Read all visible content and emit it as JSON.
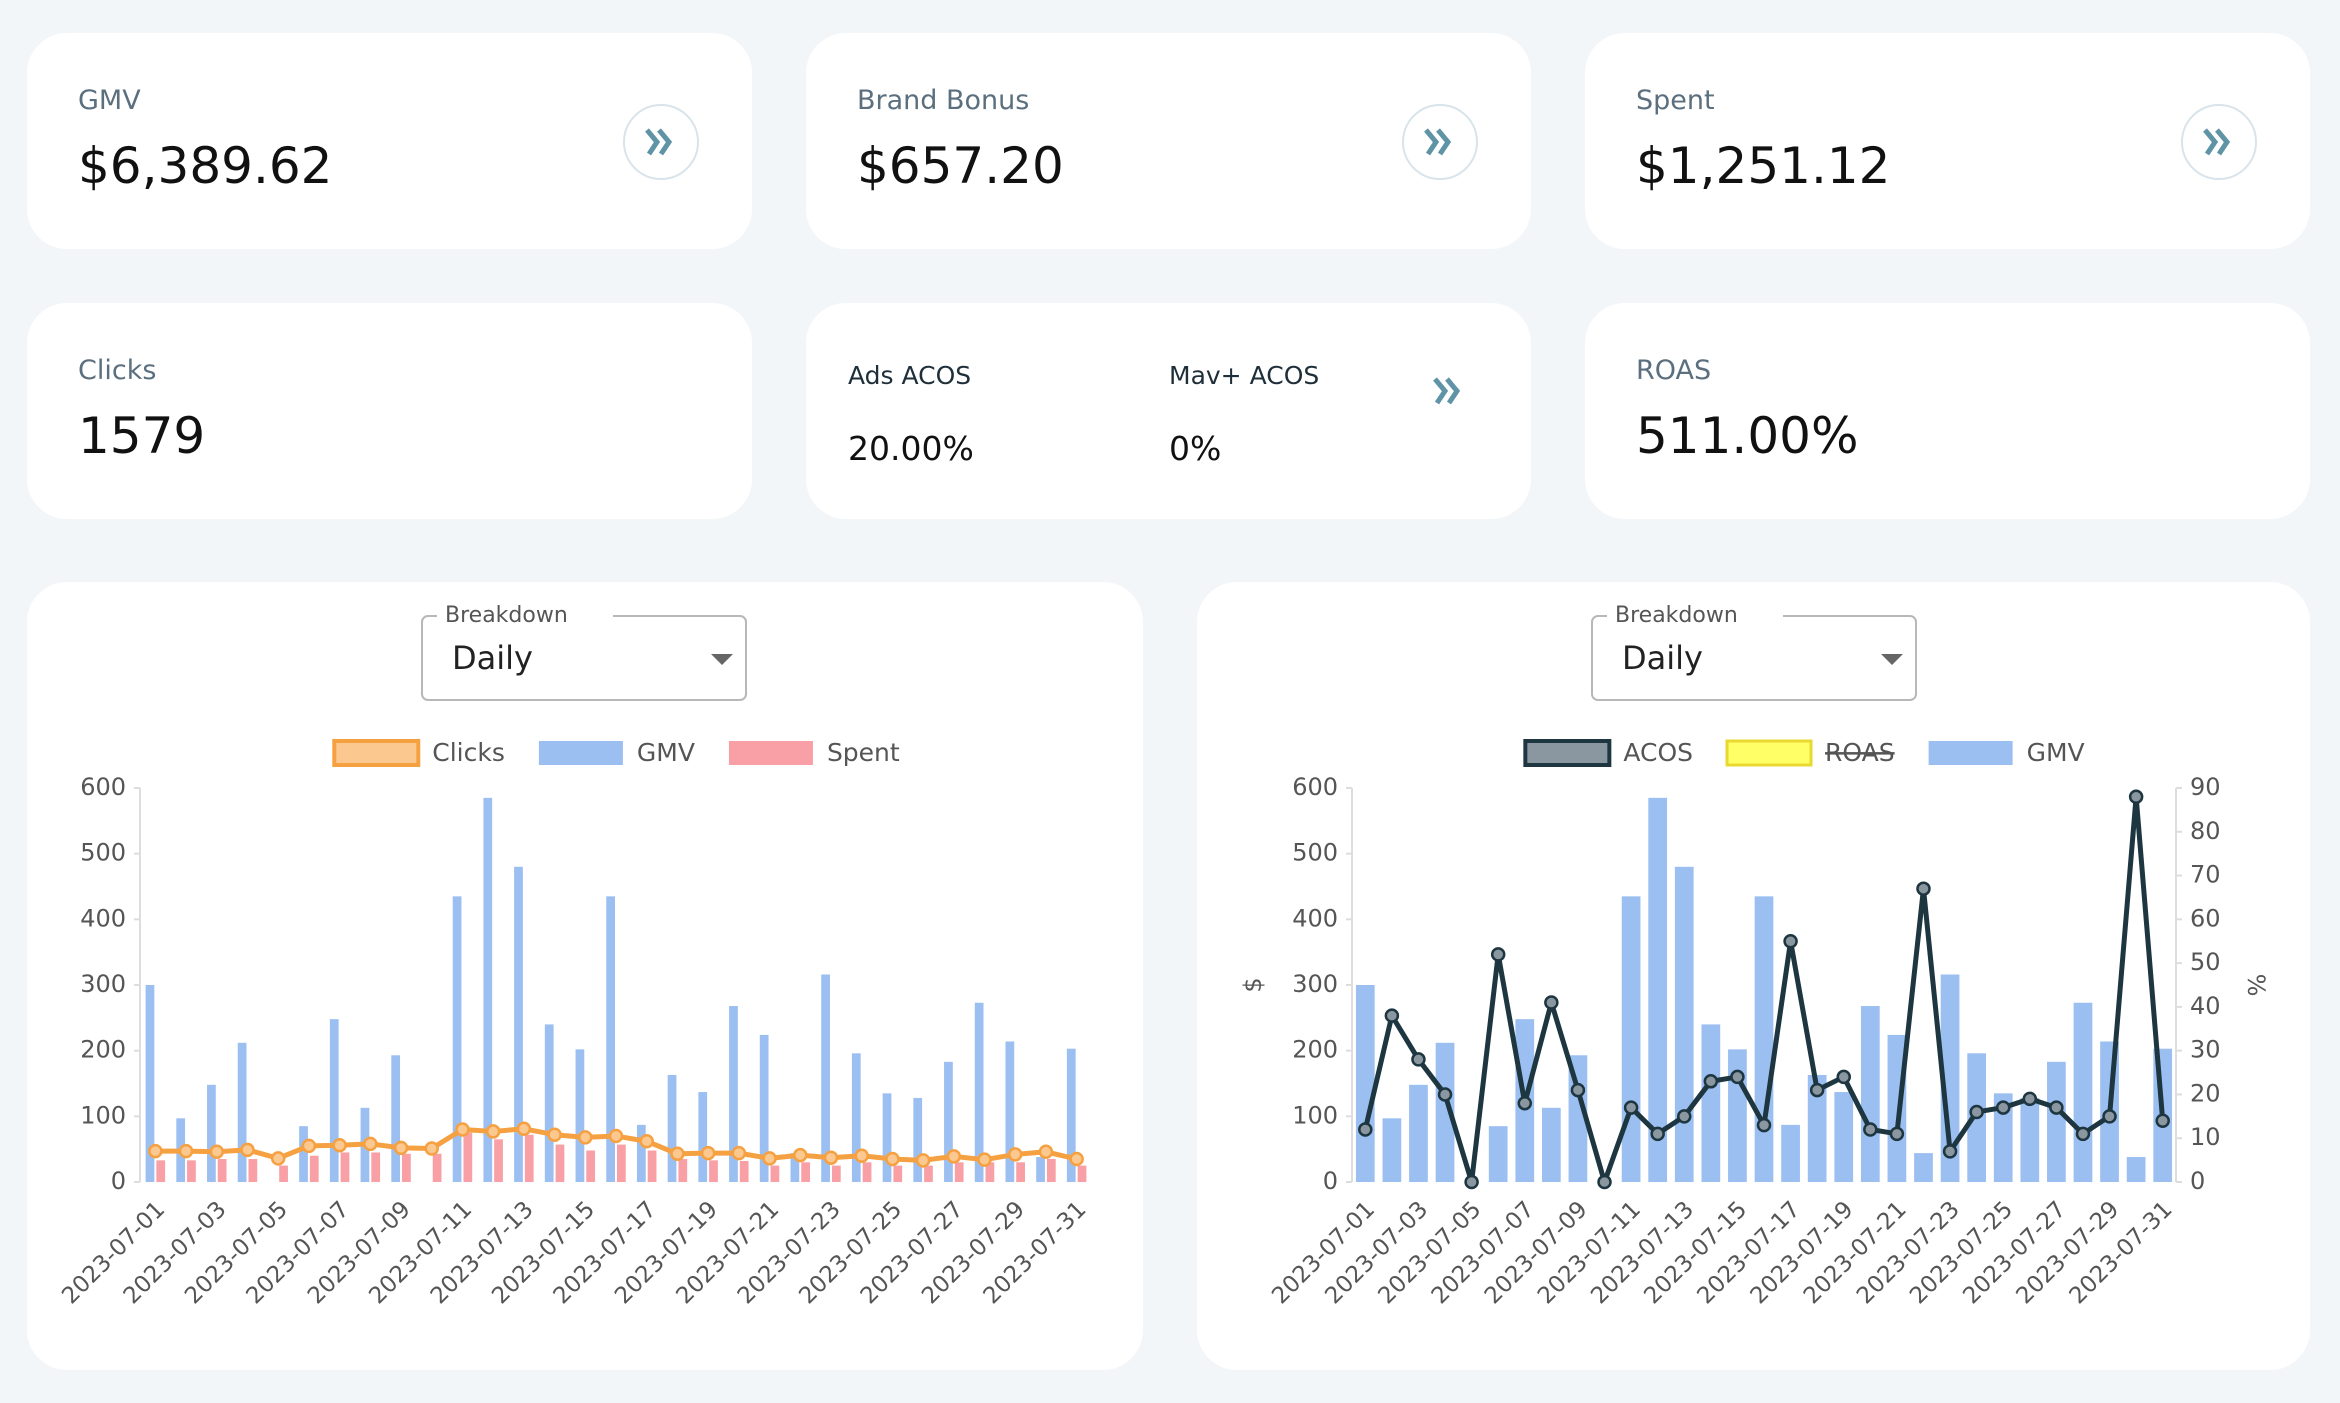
{
  "cards": [
    {
      "label": "GMV",
      "value": "$6,389.62"
    },
    {
      "label": "Brand Bonus",
      "value": "$657.20"
    },
    {
      "label": "Spent",
      "value": "$1,251.12"
    },
    {
      "label": "Clicks",
      "value": "1579"
    },
    {
      "items": [
        {
          "label": "Ads ACOS",
          "value": "20.00%"
        },
        {
          "label": "Mav+ ACOS",
          "value": "0%"
        }
      ]
    },
    {
      "label": "ROAS",
      "value": "511.00%"
    }
  ],
  "chart_data": [
    {
      "type": "bar",
      "breakdown": {
        "label": "Breakdown",
        "value": "Daily"
      },
      "legend": "top",
      "grid": false,
      "categories": [
        "2023-07-01",
        null,
        "2023-07-03",
        null,
        "2023-07-05",
        null,
        "2023-07-07",
        null,
        "2023-07-09",
        null,
        "2023-07-11",
        null,
        "2023-07-13",
        null,
        "2023-07-15",
        null,
        "2023-07-17",
        null,
        "2023-07-19",
        null,
        "2023-07-21",
        null,
        "2023-07-23",
        null,
        "2023-07-25",
        null,
        "2023-07-27",
        null,
        "2023-07-29",
        null,
        "2023-07-31"
      ],
      "ylim": [
        0,
        600
      ],
      "yticks": [
        0,
        100,
        200,
        300,
        400,
        500,
        600
      ],
      "series": [
        {
          "name": "Clicks",
          "type": "line",
          "color": "#f5a142",
          "fill": "#fbc88f",
          "values": [
            47,
            47,
            46,
            49,
            36,
            55,
            56,
            58,
            52,
            51,
            80,
            77,
            81,
            72,
            68,
            70,
            62,
            43,
            44,
            44,
            36,
            41,
            37,
            40,
            35,
            33,
            39,
            34,
            42,
            46,
            35
          ]
        },
        {
          "name": "GMV",
          "color": "#9cbff2",
          "values": [
            300,
            97,
            148,
            212,
            0,
            85,
            248,
            113,
            193,
            0,
            435,
            585,
            480,
            240,
            202,
            435,
            87,
            163,
            137,
            268,
            224,
            44,
            316,
            196,
            135,
            128,
            183,
            273,
            214,
            38,
            203
          ]
        },
        {
          "name": "Spent",
          "color": "#f8a0a5",
          "values": [
            33,
            33,
            35,
            35,
            25,
            40,
            45,
            45,
            43,
            43,
            75,
            65,
            72,
            57,
            48,
            57,
            48,
            35,
            33,
            32,
            25,
            30,
            25,
            30,
            25,
            25,
            30,
            30,
            30,
            35,
            25
          ]
        }
      ]
    },
    {
      "type": "bar",
      "breakdown": {
        "label": "Breakdown",
        "value": "Daily"
      },
      "legend": "top",
      "grid": false,
      "ylabel": "$",
      "y2label": "%",
      "categories": [
        "2023-07-01",
        null,
        "2023-07-03",
        null,
        "2023-07-05",
        null,
        "2023-07-07",
        null,
        "2023-07-09",
        null,
        "2023-07-11",
        null,
        "2023-07-13",
        null,
        "2023-07-15",
        null,
        "2023-07-17",
        null,
        "2023-07-19",
        null,
        "2023-07-21",
        null,
        "2023-07-23",
        null,
        "2023-07-25",
        null,
        "2023-07-27",
        null,
        "2023-07-29",
        null,
        "2023-07-31"
      ],
      "ylim": [
        0,
        600
      ],
      "yticks": [
        0,
        100,
        200,
        300,
        400,
        500,
        600
      ],
      "y2lim": [
        0,
        90
      ],
      "y2ticks": [
        0,
        10,
        20,
        30,
        40,
        50,
        60,
        70,
        80,
        90
      ],
      "series": [
        {
          "name": "ACOS",
          "type": "line",
          "axis": "y2",
          "color": "#1d3640",
          "fill": "#8a97a0",
          "values": [
            12,
            38,
            28,
            20,
            0,
            52,
            18,
            41,
            21,
            0,
            17,
            11,
            15,
            23,
            24,
            13,
            55,
            21,
            24,
            12,
            11,
            67,
            7,
            16,
            17,
            19,
            17,
            11,
            15,
            88,
            14
          ]
        },
        {
          "name": "ROAS",
          "color": "#ffff66",
          "border": "#e8d830",
          "hidden": true
        },
        {
          "name": "GMV",
          "color": "#9cbff2",
          "values": [
            300,
            97,
            148,
            212,
            0,
            85,
            248,
            113,
            193,
            0,
            435,
            585,
            480,
            240,
            202,
            435,
            87,
            163,
            137,
            268,
            224,
            44,
            316,
            196,
            135,
            128,
            183,
            273,
            214,
            38,
            203
          ]
        }
      ]
    }
  ]
}
